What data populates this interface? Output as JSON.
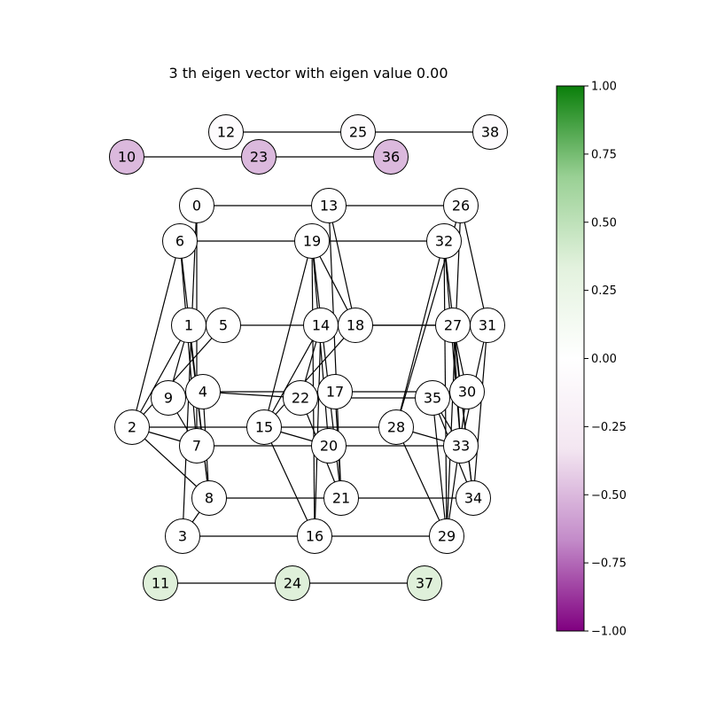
{
  "title": "3 th eigen vector with eigen value 0.00",
  "colorbar": {
    "ticks": [
      "1.00",
      "0.75",
      "0.50",
      "0.25",
      "0.00",
      "−0.25",
      "−0.50",
      "−0.75",
      "−1.00"
    ],
    "tick_values": [
      1.0,
      0.75,
      0.5,
      0.25,
      0.0,
      -0.25,
      -0.5,
      -0.75,
      -1.0
    ],
    "colormap": "PRGn",
    "vmin": -1.0,
    "vmax": 1.0,
    "stops": [
      "#800080",
      "#c38bc9",
      "#f3e6f1",
      "#ffffff",
      "#e3f2de",
      "#99d094",
      "#0a7f0a"
    ]
  },
  "graph": {
    "nodes": [
      {
        "id": "0",
        "value": 0.0
      },
      {
        "id": "1",
        "value": 0.0
      },
      {
        "id": "2",
        "value": 0.0
      },
      {
        "id": "3",
        "value": 0.0
      },
      {
        "id": "4",
        "value": 0.0
      },
      {
        "id": "5",
        "value": 0.0
      },
      {
        "id": "6",
        "value": 0.0
      },
      {
        "id": "7",
        "value": 0.0
      },
      {
        "id": "8",
        "value": 0.0
      },
      {
        "id": "9",
        "value": 0.0
      },
      {
        "id": "10",
        "value": -0.5
      },
      {
        "id": "11",
        "value": 0.35
      },
      {
        "id": "12",
        "value": -0.05
      },
      {
        "id": "13",
        "value": 0.0
      },
      {
        "id": "14",
        "value": 0.0
      },
      {
        "id": "15",
        "value": 0.0
      },
      {
        "id": "16",
        "value": 0.0
      },
      {
        "id": "17",
        "value": 0.0
      },
      {
        "id": "18",
        "value": 0.0
      },
      {
        "id": "19",
        "value": 0.0
      },
      {
        "id": "20",
        "value": 0.0
      },
      {
        "id": "21",
        "value": 0.0
      },
      {
        "id": "22",
        "value": 0.0
      },
      {
        "id": "23",
        "value": -0.5
      },
      {
        "id": "24",
        "value": 0.35
      },
      {
        "id": "25",
        "value": -0.05
      },
      {
        "id": "26",
        "value": 0.0
      },
      {
        "id": "27",
        "value": 0.0
      },
      {
        "id": "28",
        "value": 0.0
      },
      {
        "id": "29",
        "value": 0.0
      },
      {
        "id": "30",
        "value": 0.0
      },
      {
        "id": "31",
        "value": 0.0
      },
      {
        "id": "32",
        "value": 0.0
      },
      {
        "id": "33",
        "value": 0.0
      },
      {
        "id": "34",
        "value": 0.0
      },
      {
        "id": "35",
        "value": 0.0
      },
      {
        "id": "36",
        "value": -0.5
      },
      {
        "id": "37",
        "value": 0.35
      },
      {
        "id": "38",
        "value": -0.05
      }
    ],
    "edges": [
      [
        "12",
        "25"
      ],
      [
        "25",
        "38"
      ],
      [
        "10",
        "23"
      ],
      [
        "23",
        "36"
      ],
      [
        "11",
        "24"
      ],
      [
        "24",
        "37"
      ],
      [
        "0",
        "13"
      ],
      [
        "13",
        "26"
      ],
      [
        "6",
        "19"
      ],
      [
        "19",
        "32"
      ],
      [
        "5",
        "14"
      ],
      [
        "14",
        "27"
      ],
      [
        "18",
        "27"
      ],
      [
        "2",
        "15"
      ],
      [
        "15",
        "28"
      ],
      [
        "7",
        "20"
      ],
      [
        "20",
        "33"
      ],
      [
        "8",
        "21"
      ],
      [
        "21",
        "34"
      ],
      [
        "3",
        "16"
      ],
      [
        "16",
        "29"
      ],
      [
        "4",
        "17"
      ],
      [
        "17",
        "30"
      ],
      [
        "4",
        "22"
      ],
      [
        "22",
        "35"
      ],
      [
        "0",
        "7"
      ],
      [
        "0",
        "3"
      ],
      [
        "6",
        "2"
      ],
      [
        "1",
        "2"
      ],
      [
        "6",
        "8"
      ],
      [
        "6",
        "7"
      ],
      [
        "1",
        "8"
      ],
      [
        "5",
        "2"
      ],
      [
        "9",
        "1"
      ],
      [
        "9",
        "7"
      ],
      [
        "2",
        "7"
      ],
      [
        "2",
        "8"
      ],
      [
        "8",
        "3"
      ],
      [
        "4",
        "8"
      ],
      [
        "13",
        "21"
      ],
      [
        "13",
        "18"
      ],
      [
        "19",
        "15"
      ],
      [
        "19",
        "16"
      ],
      [
        "19",
        "21"
      ],
      [
        "19",
        "18"
      ],
      [
        "19",
        "20"
      ],
      [
        "14",
        "15"
      ],
      [
        "14",
        "16"
      ],
      [
        "14",
        "22"
      ],
      [
        "18",
        "15"
      ],
      [
        "17",
        "21"
      ],
      [
        "22",
        "21"
      ],
      [
        "15",
        "20"
      ],
      [
        "15",
        "16"
      ],
      [
        "26",
        "28"
      ],
      [
        "26",
        "31"
      ],
      [
        "26",
        "29"
      ],
      [
        "32",
        "28"
      ],
      [
        "32",
        "34"
      ],
      [
        "32",
        "29"
      ],
      [
        "32",
        "33"
      ],
      [
        "27",
        "34"
      ],
      [
        "27",
        "33"
      ],
      [
        "31",
        "33"
      ],
      [
        "31",
        "34"
      ],
      [
        "30",
        "29"
      ],
      [
        "35",
        "33"
      ],
      [
        "35",
        "34"
      ],
      [
        "28",
        "33"
      ],
      [
        "28",
        "29"
      ],
      [
        "27",
        "30"
      ],
      [
        "35",
        "29"
      ]
    ]
  }
}
